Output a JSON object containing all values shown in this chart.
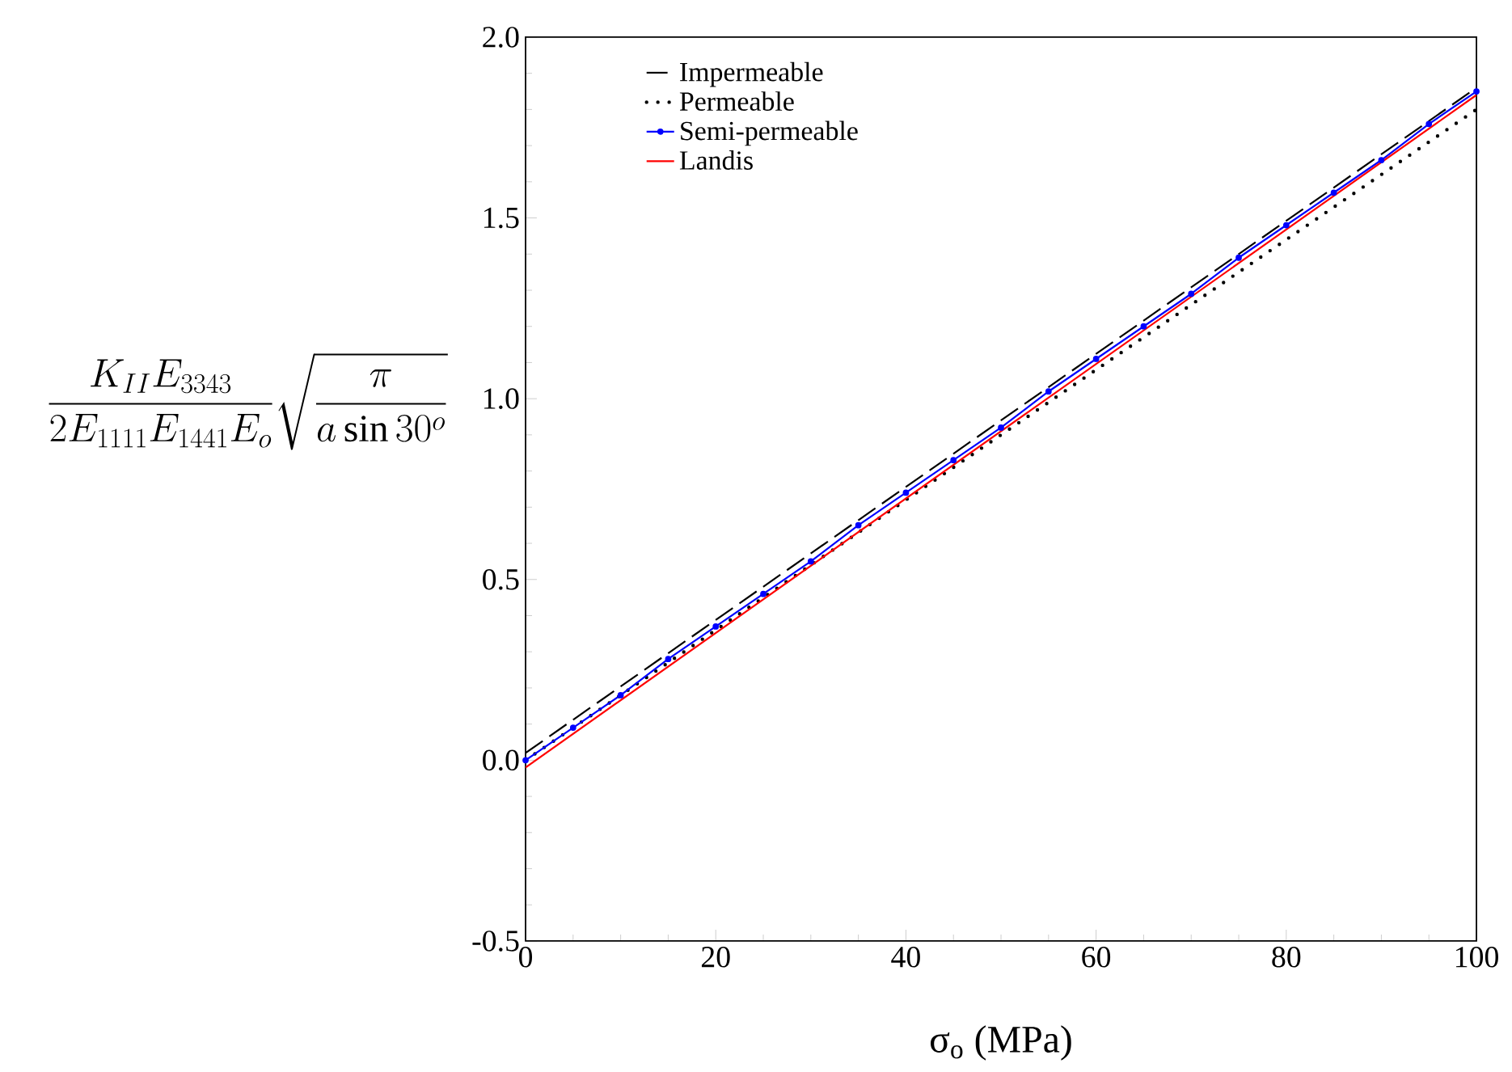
{
  "chart_data": {
    "type": "line",
    "xlabel": "σ$_{o}$ (MPa)",
    "ylabel": "\\frac{K_{II}E_{3343}}{2E_{1111}E_{1441}E_{o}}\\sqrt{\\frac{\\pi}{a\\sin 30^{o}}}",
    "xlim": [
      0,
      100
    ],
    "ylim": [
      -0.5,
      2.0
    ],
    "xticks": [
      0,
      20,
      40,
      60,
      80,
      100
    ],
    "yticks": [
      {
        "value": -0.5,
        "label": "-0.5"
      },
      {
        "value": 0,
        "label": "0.0"
      },
      {
        "value": 0.5,
        "label": "0.5"
      },
      {
        "value": 1.0,
        "label": "1.0"
      },
      {
        "value": 1.5,
        "label": "1.5"
      },
      {
        "value": 2.0,
        "label": "2.0"
      }
    ],
    "grid": false,
    "legend": "top left",
    "series": [
      {
        "name": "Impermeable",
        "color": "#000000",
        "line_style": "dashed",
        "marker": "none",
        "x": [
          0,
          100
        ],
        "values": [
          0.02,
          1.86
        ]
      },
      {
        "name": "Permeable",
        "color": "#000000",
        "line_style": "dotted",
        "marker": "none",
        "x": [
          0,
          100
        ],
        "values": [
          0.0,
          1.8
        ]
      },
      {
        "name": "Semi-permeable",
        "color": "#0000ff",
        "line_style": "solid",
        "marker": "circle",
        "x": [
          0,
          5,
          10,
          15,
          20,
          25,
          30,
          35,
          40,
          45,
          50,
          55,
          60,
          65,
          70,
          75,
          80,
          85,
          90,
          95,
          100
        ],
        "values": [
          0.0,
          0.09,
          0.18,
          0.28,
          0.37,
          0.46,
          0.55,
          0.65,
          0.74,
          0.83,
          0.92,
          1.02,
          1.11,
          1.2,
          1.29,
          1.39,
          1.48,
          1.57,
          1.66,
          1.76,
          1.85
        ]
      },
      {
        "name": "Landis",
        "color": "#ff0000",
        "line_style": "solid",
        "marker": "none",
        "x": [
          0,
          100
        ],
        "values": [
          -0.02,
          1.84
        ]
      }
    ]
  }
}
